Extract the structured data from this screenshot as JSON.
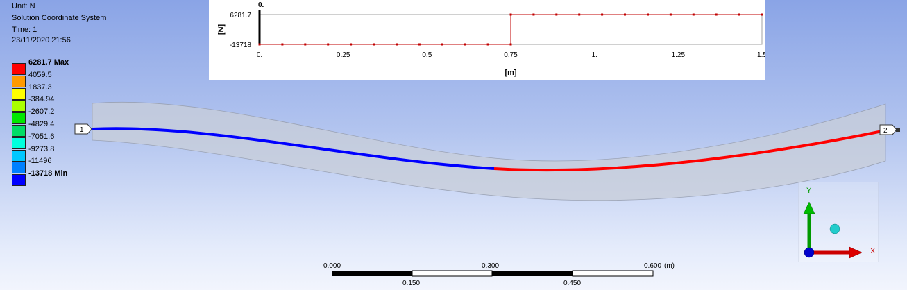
{
  "header": {
    "lines": [
      "Unit: N",
      "Solution Coordinate System",
      "Time: 1",
      "23/11/2020 21:56"
    ]
  },
  "legend": {
    "items": [
      {
        "label": "6281.7 Max",
        "color": "#ff0000",
        "bold": true
      },
      {
        "label": "4059.5",
        "color": "#ff9a00",
        "bold": false
      },
      {
        "label": "1837.3",
        "color": "#ffff00",
        "bold": false
      },
      {
        "label": "-384.94",
        "color": "#aaff00",
        "bold": false
      },
      {
        "label": "-2607.2",
        "color": "#00e800",
        "bold": false
      },
      {
        "label": "-4829.4",
        "color": "#00dd66",
        "bold": false
      },
      {
        "label": "-7051.6",
        "color": "#00ffdd",
        "bold": false
      },
      {
        "label": "-9273.8",
        "color": "#00c8ff",
        "bold": false
      },
      {
        "label": "-11496",
        "color": "#0080ff",
        "bold": false
      },
      {
        "label": "-13718 Min",
        "color": "#0000ff",
        "bold": true
      }
    ]
  },
  "chart_data": {
    "type": "line",
    "x_unit_label": "[m]",
    "y_unit_label": "[N]",
    "xlim": [
      0,
      1.5
    ],
    "ylim": [
      -13718,
      6281.7
    ],
    "x_ticks": [
      {
        "v": 0,
        "label": "0."
      },
      {
        "v": 0.25,
        "label": "0.25"
      },
      {
        "v": 0.5,
        "label": "0.5"
      },
      {
        "v": 0.75,
        "label": "0.75"
      },
      {
        "v": 1,
        "label": "1."
      },
      {
        "v": 1.25,
        "label": "1.25"
      },
      {
        "v": 1.5,
        "label": "1.5"
      }
    ],
    "y_ticks": [
      {
        "v": 6281.7,
        "label": "6281.7"
      },
      {
        "v": -13718,
        "label": "-13718"
      }
    ],
    "cursor_label": "0.",
    "line_color": "#c00000",
    "series": [
      {
        "x": [
          0,
          0.0682,
          0.1364,
          0.2045,
          0.2727,
          0.3409,
          0.4091,
          0.4773,
          0.5455,
          0.6136,
          0.6818,
          0.75,
          0.75,
          0.8182,
          0.8864,
          0.9545,
          1.0227,
          1.0909,
          1.1591,
          1.2273,
          1.2955,
          1.3636,
          1.4318,
          1.5
        ],
        "y": [
          -13718,
          -13718,
          -13718,
          -13718,
          -13718,
          -13718,
          -13718,
          -13718,
          -13718,
          -13718,
          -13718,
          -13718,
          6281.7,
          6281.7,
          6281.7,
          6281.7,
          6281.7,
          6281.7,
          6281.7,
          6281.7,
          6281.7,
          6281.7,
          6281.7,
          6281.7
        ]
      }
    ]
  },
  "beam": {
    "node1_label": "1",
    "node2_label": "2",
    "left_color": "#0000ff",
    "right_color": "#ff0000"
  },
  "scale_bar": {
    "top_labels": [
      "0.000",
      "0.300",
      "0.600"
    ],
    "bottom_labels": [
      "0.150",
      "0.450"
    ],
    "unit": "(m)"
  },
  "triad": {
    "x_label": "X",
    "y_label": "Y",
    "x_color": "#cc0000",
    "y_color": "#009900",
    "z_color": "#0000cc"
  }
}
